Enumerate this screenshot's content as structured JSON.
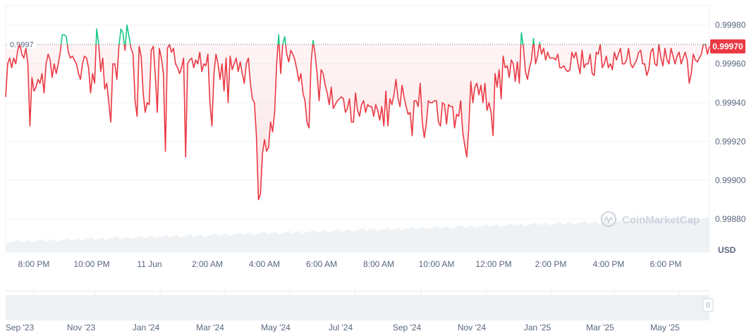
{
  "chart_data": {
    "type": "line",
    "title": "",
    "y_unit": "USD",
    "reference_line": {
      "label": "0.9997",
      "value": 0.9997
    },
    "current_price": "0.99970",
    "watermark": "CoinMarketCap",
    "ylim": [
      0.99863,
      0.9999
    ],
    "yticks": [
      "0.99980",
      "0.99960",
      "0.99940",
      "0.99920",
      "0.99900",
      "0.99880"
    ],
    "xticks": [
      "8:00 PM",
      "10:00 PM",
      "11 Jun",
      "2:00 AM",
      "4:00 AM",
      "6:00 AM",
      "8:00 AM",
      "10:00 AM",
      "12:00 PM",
      "2:00 PM",
      "4:00 PM",
      "6:00 PM"
    ],
    "x_start": "10 Jun 18:35",
    "x_end": "11 Jun 19:30",
    "series": [
      {
        "values": [
          0.99943,
          0.9996,
          0.99963,
          0.99958,
          0.99963,
          0.9996,
          0.99967,
          0.9997,
          0.99965,
          0.99963,
          0.99968,
          0.9996,
          0.99928,
          0.99953,
          0.99946,
          0.99948,
          0.99952,
          0.9995,
          0.99955,
          0.99945,
          0.9996,
          0.99965,
          0.99962,
          0.99953,
          0.9996,
          0.99955,
          0.9996,
          0.99966,
          0.99975,
          0.99975,
          0.99974,
          0.99966,
          0.99963,
          0.99964,
          0.99962,
          0.9996,
          0.99955,
          0.99952,
          0.9996,
          0.99964,
          0.99963,
          0.99958,
          0.99945,
          0.99955,
          0.9995,
          0.99978,
          0.9997,
          0.99956,
          0.99963,
          0.99947,
          0.9995,
          0.9994,
          0.9993,
          0.9996,
          0.9996,
          0.99952,
          0.99969,
          0.99978,
          0.99976,
          0.99967,
          0.9998,
          0.99974,
          0.99968,
          0.99965,
          0.99941,
          0.99933,
          0.99969,
          0.99964,
          0.99945,
          0.99935,
          0.9994,
          0.99939,
          0.99967,
          0.99969,
          0.99954,
          0.99935,
          0.99968,
          0.99963,
          0.99955,
          0.99915,
          0.99968,
          0.9997,
          0.99966,
          0.99968,
          0.9996,
          0.99958,
          0.99955,
          0.99958,
          0.99963,
          0.99912,
          0.9996,
          0.99962,
          0.99963,
          0.99958,
          0.99962,
          0.9996,
          0.99966,
          0.99956,
          0.9996,
          0.99959,
          0.99965,
          0.9994,
          0.99928,
          0.99955,
          0.99965,
          0.9996,
          0.99952,
          0.9996,
          0.99946,
          0.99963,
          0.9994,
          0.99964,
          0.99957,
          0.9996,
          0.99963,
          0.99956,
          0.99961,
          0.99955,
          0.9995,
          0.9996,
          0.99963,
          0.9995,
          0.99942,
          0.9994,
          0.99923,
          0.9989,
          0.99893,
          0.99914,
          0.99921,
          0.99915,
          0.99917,
          0.9993,
          0.99925,
          0.99935,
          0.9996,
          0.99975,
          0.99955,
          0.9997,
          0.99974,
          0.99965,
          0.99961,
          0.99967,
          0.99965,
          0.99962,
          0.99957,
          0.99951,
          0.99955,
          0.99945,
          0.99941,
          0.9993,
          0.99927,
          0.9996,
          0.99972,
          0.99965,
          0.99955,
          0.99941,
          0.99957,
          0.99955,
          0.99949,
          0.99945,
          0.99939,
          0.99948,
          0.99937,
          0.99939,
          0.99941,
          0.99942,
          0.99943,
          0.99942,
          0.99935,
          0.99937,
          0.99942,
          0.9993,
          0.9993,
          0.99945,
          0.99936,
          0.99933,
          0.99939,
          0.99941,
          0.99935,
          0.99939,
          0.99938,
          0.99938,
          0.99933,
          0.99939,
          0.99936,
          0.99931,
          0.99938,
          0.99928,
          0.99946,
          0.99928,
          0.99942,
          0.99939,
          0.99944,
          0.99952,
          0.99942,
          0.99938,
          0.99949,
          0.99943,
          0.99938,
          0.99934,
          0.99935,
          0.99923,
          0.99941,
          0.99941,
          0.99938,
          0.9995,
          0.9993,
          0.99922,
          0.99929,
          0.99941,
          0.9994,
          0.9994,
          0.99941,
          0.99941,
          0.9993,
          0.99928,
          0.9994,
          0.99939,
          0.99929,
          0.99939,
          0.99938,
          0.99938,
          0.99927,
          0.99934,
          0.99933,
          0.99941,
          0.99925,
          0.99918,
          0.99912,
          0.99927,
          0.99951,
          0.9994,
          0.99948,
          0.9995,
          0.99944,
          0.99949,
          0.9994,
          0.9995,
          0.99936,
          0.9994,
          0.99935,
          0.99923,
          0.99955,
          0.99948,
          0.99957,
          0.99942,
          0.99964,
          0.99958,
          0.99959,
          0.99953,
          0.99962,
          0.9996,
          0.99951,
          0.99961,
          0.9995,
          0.99976,
          0.99969,
          0.99956,
          0.99952,
          0.99958,
          0.99962,
          0.99973,
          0.9996,
          0.99964,
          0.99971,
          0.99965,
          0.99968,
          0.99962,
          0.99966,
          0.99963,
          0.99963,
          0.99963,
          0.99962,
          0.99965,
          0.99958,
          0.99958,
          0.99959,
          0.99957,
          0.99956,
          0.99957,
          0.99966,
          0.99963,
          0.99966,
          0.9996,
          0.99955,
          0.99967,
          0.99958,
          0.9996,
          0.9996,
          0.99965,
          0.99955,
          0.99954,
          0.99966,
          0.99965,
          0.9997,
          0.99958,
          0.9996,
          0.99964,
          0.99958,
          0.9996,
          0.99957,
          0.99966,
          0.99962,
          0.99965,
          0.99968,
          0.9996,
          0.9996,
          0.99962,
          0.99968,
          0.9996,
          0.99958,
          0.9996,
          0.99962,
          0.99966,
          0.99967,
          0.9996,
          0.9996,
          0.99954,
          0.99957,
          0.99966,
          0.99968,
          0.9996,
          0.99959,
          0.9997,
          0.99963,
          0.99959,
          0.99968,
          0.99962,
          0.9996,
          0.99968,
          0.99964,
          0.9996,
          0.99964,
          0.99966,
          0.9996,
          0.99963,
          0.99966,
          0.99962,
          0.9995,
          0.99955,
          0.99965,
          0.99962,
          0.99961,
          0.99963,
          0.99965,
          0.9997,
          0.9997,
          0.99965,
          0.99969
        ]
      }
    ],
    "colors": {
      "below": "#ea3943",
      "above": "#16c784",
      "tag_bg": "#ea3943",
      "tag_text": "#ffffff",
      "grid": "#eff2f5",
      "volume": "#eff2f5"
    },
    "navigator": {
      "labels": [
        "Sep '23",
        "Nov '23",
        "Jan '24",
        "Mar '24",
        "May '24",
        "Jul '24",
        "Sep '24",
        "Nov '24",
        "Jan '25",
        "Mar '25",
        "May '25"
      ]
    }
  }
}
